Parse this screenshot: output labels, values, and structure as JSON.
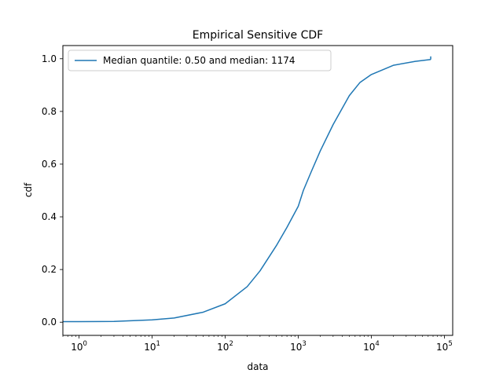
{
  "chart_data": {
    "type": "line",
    "title": "Empirical Sensitive CDF",
    "xlabel": "data",
    "ylabel": "cdf",
    "xscale": "log",
    "xlim": [
      0.6,
      130000
    ],
    "ylim": [
      -0.05,
      1.05
    ],
    "x_ticks": [
      {
        "value": 1,
        "label": "10",
        "exp": "0"
      },
      {
        "value": 10,
        "label": "10",
        "exp": "1"
      },
      {
        "value": 100,
        "label": "10",
        "exp": "2"
      },
      {
        "value": 1000,
        "label": "10",
        "exp": "3"
      },
      {
        "value": 10000,
        "label": "10",
        "exp": "4"
      },
      {
        "value": 100000,
        "label": "10",
        "exp": "5"
      }
    ],
    "y_ticks": [
      {
        "value": 0.0,
        "label": "0.0"
      },
      {
        "value": 0.2,
        "label": "0.2"
      },
      {
        "value": 0.4,
        "label": "0.4"
      },
      {
        "value": 0.6,
        "label": "0.6"
      },
      {
        "value": 0.8,
        "label": "0.8"
      },
      {
        "value": 1.0,
        "label": "1.0"
      }
    ],
    "grid": false,
    "legend_position": "top-left",
    "series": [
      {
        "name": "Median quantile: 0.50 and median: 1174",
        "color": "#1f77b4",
        "points": [
          {
            "x": 0.6,
            "y": 0.002
          },
          {
            "x": 1,
            "y": 0.002
          },
          {
            "x": 3,
            "y": 0.003
          },
          {
            "x": 10,
            "y": 0.009
          },
          {
            "x": 20,
            "y": 0.016
          },
          {
            "x": 50,
            "y": 0.038
          },
          {
            "x": 100,
            "y": 0.07
          },
          {
            "x": 200,
            "y": 0.135
          },
          {
            "x": 300,
            "y": 0.195
          },
          {
            "x": 500,
            "y": 0.29
          },
          {
            "x": 700,
            "y": 0.36
          },
          {
            "x": 1000,
            "y": 0.44
          },
          {
            "x": 1174,
            "y": 0.5
          },
          {
            "x": 1500,
            "y": 0.57
          },
          {
            "x": 2000,
            "y": 0.65
          },
          {
            "x": 3000,
            "y": 0.75
          },
          {
            "x": 5000,
            "y": 0.86
          },
          {
            "x": 7000,
            "y": 0.91
          },
          {
            "x": 10000,
            "y": 0.94
          },
          {
            "x": 20000,
            "y": 0.975
          },
          {
            "x": 40000,
            "y": 0.99
          },
          {
            "x": 65000,
            "y": 0.997
          }
        ]
      }
    ]
  }
}
